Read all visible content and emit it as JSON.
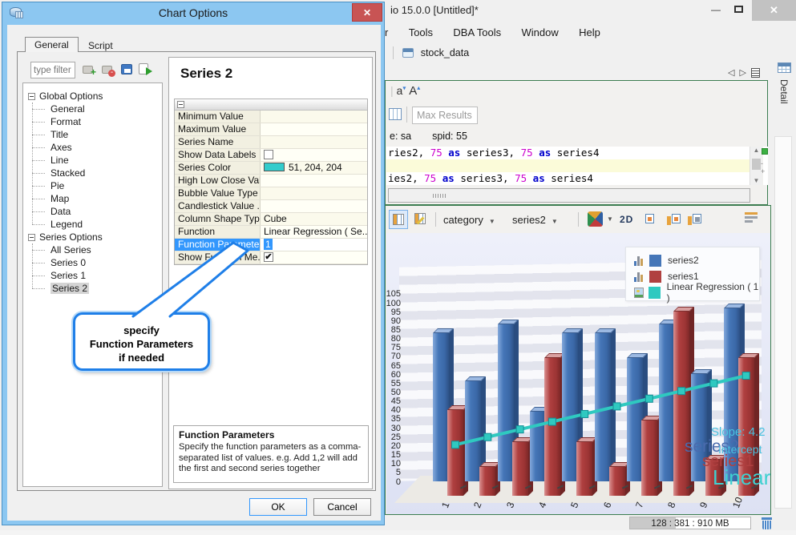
{
  "dialog": {
    "title": "Chart Options",
    "tabs": [
      {
        "label": "General"
      },
      {
        "label": "Script"
      }
    ],
    "filter_placeholder": "type filter te",
    "tree": {
      "groups": [
        {
          "label": "Global Options",
          "children": [
            "General",
            "Format",
            "Title",
            "Axes",
            "Line",
            "Stacked",
            "Pie",
            "Map",
            "Data",
            "Legend"
          ]
        },
        {
          "label": "Series Options",
          "children": [
            "All Series",
            "Series 0",
            "Series 1",
            "Series 2"
          ]
        }
      ],
      "selected": "Series 2"
    },
    "properties_panel": {
      "title": "Series 2",
      "rows": [
        {
          "name": "Minimum Value",
          "type": "text",
          "value": ""
        },
        {
          "name": "Maximum Value",
          "type": "text",
          "value": ""
        },
        {
          "name": "Series Name",
          "type": "text",
          "value": ""
        },
        {
          "name": "Show Data Labels",
          "type": "checkbox",
          "checked": false
        },
        {
          "name": "Series Color",
          "type": "color",
          "swatch": "#33cccc",
          "value": "51, 204, 204"
        },
        {
          "name": "High Low Close Val...",
          "type": "text",
          "value": ""
        },
        {
          "name": "Bubble Value Type",
          "type": "text",
          "value": ""
        },
        {
          "name": "Candlestick Value ...",
          "type": "text",
          "value": ""
        },
        {
          "name": "Column Shape Type",
          "type": "text",
          "value": "Cube"
        },
        {
          "name": "Function",
          "type": "text",
          "value": "Linear Regression ( Se..."
        },
        {
          "name": "Function Parameters",
          "type": "text",
          "value": "1",
          "selected": true
        },
        {
          "name": "Show Function Me...",
          "type": "checkbox",
          "checked": true
        }
      ]
    },
    "callout_lines": [
      "specify",
      "Function Parameters",
      "if needed"
    ],
    "description": {
      "title": "Function Parameters",
      "body": "Specify the function parameters as a comma-separated list of values.  e.g. Add 1,2 will add the first and second series together"
    },
    "ok_label": "OK",
    "cancel_label": "Cancel"
  },
  "app": {
    "window_title": "io 15.0.0 [Untitled]*",
    "menu_items": [
      "r",
      "Tools",
      "DBA Tools",
      "Window",
      "Help"
    ],
    "document_tab": "stock_data",
    "detail_tab": "Detail",
    "editor": {
      "max_results_placeholder": "Max Results",
      "session_fragment": "e: sa",
      "spid": "spid: 55",
      "sql_lines": [
        {
          "highlight": false,
          "tokens": [
            {
              "text": "ries2, ",
              "style": "plain"
            },
            {
              "text": "75",
              "style": "number"
            },
            {
              "text": " ",
              "style": "plain"
            },
            {
              "text": "as",
              "style": "keyword"
            },
            {
              "text": " series3, ",
              "style": "plain"
            },
            {
              "text": "75",
              "style": "number"
            },
            {
              "text": " ",
              "style": "plain"
            },
            {
              "text": "as",
              "style": "keyword"
            },
            {
              "text": " series4",
              "style": "plain"
            }
          ]
        },
        {
          "highlight": true,
          "tokens": []
        },
        {
          "highlight": false,
          "tokens": [
            {
              "text": "ies2, ",
              "style": "plain"
            },
            {
              "text": "75",
              "style": "number"
            },
            {
              "text": " ",
              "style": "plain"
            },
            {
              "text": "as",
              "style": "keyword"
            },
            {
              "text": " series3, ",
              "style": "plain"
            },
            {
              "text": "75",
              "style": "number"
            },
            {
              "text": " ",
              "style": "plain"
            },
            {
              "text": "as",
              "style": "keyword"
            },
            {
              "text": " series4",
              "style": "plain"
            }
          ]
        }
      ]
    },
    "chart_toolbar": {
      "category_dropdown": "category",
      "series_dropdown": "series2",
      "mode_label": "2D"
    },
    "status_bar": {
      "memory": "128 : 381 : 910 MB"
    }
  },
  "colors": {
    "dialog_frame": "#8cc7f1",
    "selection_blue": "#3297fd",
    "panel_border_green": "#3c7d50",
    "series_color_value": "#33cccc"
  },
  "chart_data": {
    "type": "bar",
    "subtype": "3d-columns-with-regression-line",
    "categories": [
      1,
      2,
      3,
      4,
      5,
      6,
      7,
      8,
      9,
      10
    ],
    "series": [
      {
        "name": "series2",
        "color": "#4576b8",
        "type": "bar",
        "values": [
          83,
          56,
          88,
          39,
          83,
          83,
          69,
          88,
          60,
          97
        ]
      },
      {
        "name": "series1",
        "color": "#b04040",
        "type": "bar",
        "values": [
          48,
          16,
          30,
          77,
          30,
          16,
          42,
          103,
          20,
          77
        ]
      },
      {
        "name": "Linear Regression ( 1 )",
        "color": "#2fc9c0",
        "type": "line",
        "values": [
          20.5,
          24.8,
          29.1,
          33.4,
          37.7,
          42.0,
          46.3,
          50.6,
          54.9,
          59.2
        ]
      }
    ],
    "ylim": [
      0,
      105
    ],
    "ytick_step": 5,
    "grid": true,
    "legend_position": "top-right",
    "annotations": {
      "slope": "Slope: 4.2",
      "intercept": "Intercept",
      "series2_label": "series2",
      "series1_label": "series1",
      "linear_label": "Linear"
    }
  }
}
